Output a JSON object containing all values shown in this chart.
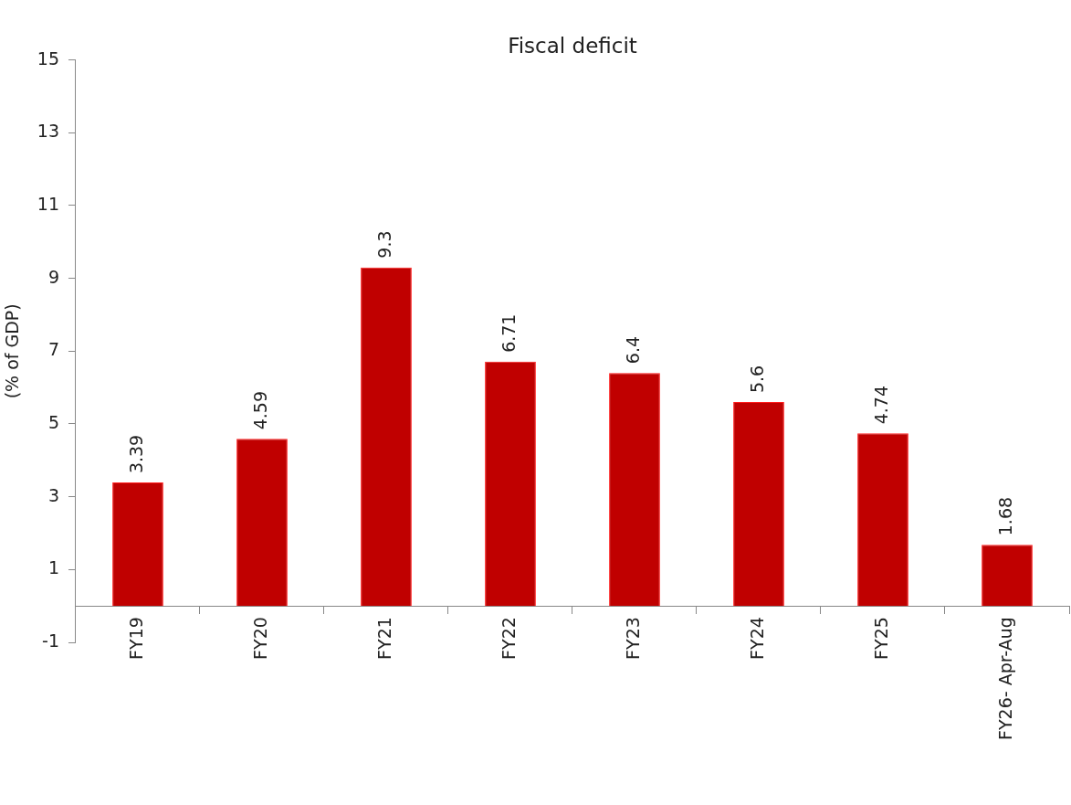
{
  "chart_data": {
    "type": "bar",
    "title": "Fiscal deficit",
    "ylabel": "(% of GDP)",
    "categories": [
      "FY19",
      "FY20",
      "FY21",
      "FY22",
      "FY23",
      "FY24",
      "FY25",
      "FY26- Apr-Aug"
    ],
    "values": [
      3.39,
      4.59,
      9.3,
      6.71,
      6.4,
      5.6,
      4.74,
      1.68
    ],
    "color": "#c00000",
    "ylim": [
      -1,
      15
    ],
    "yticks": [
      -1,
      1,
      3,
      5,
      7,
      9,
      11,
      13,
      15
    ],
    "grid": false,
    "legend": false,
    "data_labels": true
  }
}
